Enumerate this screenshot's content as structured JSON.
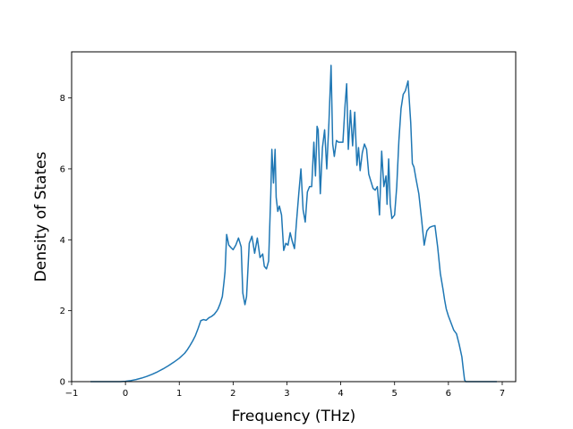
{
  "chart_data": {
    "type": "line",
    "title": "",
    "xlabel": "Frequency (THz)",
    "ylabel": "Density of States",
    "xlim": [
      -1,
      7.25
    ],
    "ylim": [
      0,
      9.3
    ],
    "xticks": [
      -1,
      0,
      1,
      2,
      3,
      4,
      5,
      6,
      7
    ],
    "yticks": [
      0,
      2,
      4,
      6,
      8
    ],
    "grid": false,
    "legend": "none",
    "series": [
      {
        "color": "#1f77b4",
        "x": [
          -0.65,
          -0.5,
          -0.3,
          -0.1,
          0.0,
          0.1,
          0.2,
          0.3,
          0.4,
          0.5,
          0.6,
          0.7,
          0.8,
          0.9,
          1.0,
          1.1,
          1.15,
          1.2,
          1.25,
          1.3,
          1.35,
          1.4,
          1.45,
          1.5,
          1.55,
          1.6,
          1.65,
          1.7,
          1.72,
          1.76,
          1.8,
          1.83,
          1.85,
          1.88,
          1.92,
          1.96,
          2.0,
          2.05,
          2.1,
          2.15,
          2.18,
          2.22,
          2.25,
          2.3,
          2.35,
          2.4,
          2.45,
          2.5,
          2.55,
          2.58,
          2.62,
          2.66,
          2.7,
          2.72,
          2.75,
          2.78,
          2.8,
          2.83,
          2.86,
          2.9,
          2.94,
          2.98,
          3.02,
          3.06,
          3.1,
          3.14,
          3.18,
          3.22,
          3.26,
          3.3,
          3.34,
          3.38,
          3.42,
          3.46,
          3.5,
          3.53,
          3.56,
          3.58,
          3.62,
          3.66,
          3.7,
          3.74,
          3.78,
          3.82,
          3.85,
          3.88,
          3.92,
          3.96,
          4.0,
          4.04,
          4.08,
          4.11,
          4.14,
          4.18,
          4.22,
          4.26,
          4.3,
          4.33,
          4.36,
          4.4,
          4.44,
          4.48,
          4.52,
          4.56,
          4.6,
          4.64,
          4.68,
          4.72,
          4.76,
          4.8,
          4.84,
          4.86,
          4.89,
          4.92,
          4.95,
          5.0,
          5.04,
          5.08,
          5.12,
          5.16,
          5.2,
          5.25,
          5.3,
          5.33,
          5.36,
          5.4,
          5.45,
          5.5,
          5.55,
          5.6,
          5.65,
          5.7,
          5.75,
          5.8,
          5.85,
          5.9,
          5.93,
          5.96,
          6.0,
          6.05,
          6.1,
          6.15,
          6.2,
          6.25,
          6.28,
          6.3,
          6.32,
          6.35,
          6.5,
          6.7,
          6.9
        ],
        "y": [
          0.0,
          0.0,
          0.0,
          0.0,
          0.01,
          0.03,
          0.06,
          0.1,
          0.15,
          0.21,
          0.28,
          0.36,
          0.45,
          0.55,
          0.66,
          0.8,
          0.9,
          1.02,
          1.15,
          1.3,
          1.5,
          1.72,
          1.75,
          1.73,
          1.8,
          1.84,
          1.9,
          2.0,
          2.05,
          2.2,
          2.4,
          2.8,
          3.1,
          4.15,
          3.85,
          3.78,
          3.72,
          3.85,
          4.05,
          3.8,
          2.5,
          2.17,
          2.4,
          3.9,
          4.1,
          3.62,
          4.05,
          3.5,
          3.6,
          3.25,
          3.18,
          3.4,
          5.3,
          6.55,
          5.6,
          6.55,
          5.2,
          4.8,
          4.95,
          4.7,
          3.7,
          3.9,
          3.85,
          4.2,
          3.95,
          3.75,
          4.55,
          5.3,
          6.0,
          4.85,
          4.5,
          5.35,
          5.5,
          5.5,
          6.75,
          5.8,
          7.2,
          7.1,
          5.3,
          6.6,
          7.1,
          6.0,
          7.3,
          8.92,
          6.7,
          6.35,
          6.8,
          6.75,
          6.75,
          6.75,
          7.8,
          8.4,
          6.55,
          7.65,
          6.65,
          7.6,
          6.1,
          6.6,
          5.95,
          6.45,
          6.7,
          6.55,
          5.85,
          5.65,
          5.45,
          5.4,
          5.5,
          4.7,
          6.5,
          5.5,
          5.8,
          5.0,
          6.28,
          5.0,
          4.6,
          4.7,
          5.5,
          6.8,
          7.7,
          8.1,
          8.2,
          8.48,
          7.3,
          6.15,
          6.05,
          5.7,
          5.3,
          4.6,
          3.85,
          4.25,
          4.35,
          4.38,
          4.4,
          3.8,
          3.05,
          2.6,
          2.3,
          2.05,
          1.85,
          1.65,
          1.45,
          1.35,
          1.05,
          0.7,
          0.3,
          0.05,
          0.0,
          0.0,
          0.0,
          0.0,
          0.0
        ]
      }
    ]
  }
}
